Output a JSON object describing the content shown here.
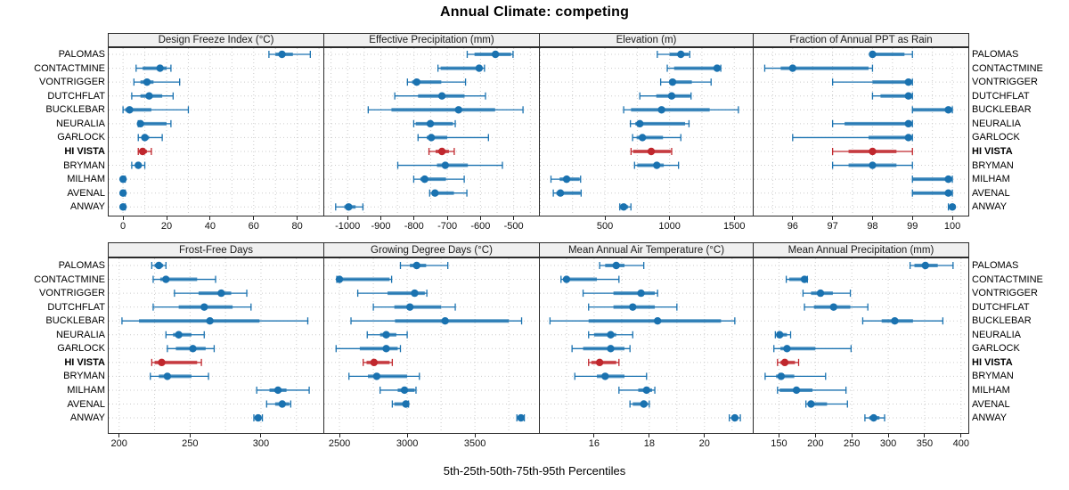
{
  "title": "Annual Climate: competing",
  "caption": "5th-25th-50th-75th-95th Percentiles",
  "highlight_site": "HI VISTA",
  "colors": {
    "series": "#1a72b0",
    "highlight": "#c0272d",
    "grid": "#cccccc",
    "header_bg": "#f0f0f0",
    "border": "#2b2b2b",
    "background": "#ffffff"
  },
  "chart_data": {
    "type": "trellis-dotplot-percentiles",
    "percentiles": [
      5,
      25,
      50,
      75,
      95
    ],
    "legend_position": "none",
    "grid": "dotted",
    "sites": [
      "PALOMAS",
      "CONTACTMINE",
      "VONTRIGGER",
      "DUTCHFLAT",
      "BUCKLEBAR",
      "NEURALIA",
      "GARLOCK",
      "HI VISTA",
      "BRYMAN",
      "MILHAM",
      "AVENAL",
      "ANWAY"
    ],
    "panels": [
      {
        "title": "Design Freeze Index (°C)",
        "row": 0,
        "col": 0,
        "xlim": [
          -7,
          92
        ],
        "ticks": [
          0,
          20,
          40,
          60,
          80
        ],
        "minor": 10,
        "values": [
          [
            67,
            70,
            73,
            78,
            86
          ],
          [
            6,
            9,
            17,
            20,
            22
          ],
          [
            5,
            8,
            11,
            14,
            26
          ],
          [
            4,
            8,
            12,
            18,
            23
          ],
          [
            0,
            1,
            3,
            13,
            30
          ],
          [
            7,
            7.5,
            8,
            20,
            22
          ],
          [
            7,
            9,
            10,
            12,
            18
          ],
          [
            7,
            8,
            9,
            11,
            13
          ],
          [
            4,
            6,
            7,
            8,
            10
          ],
          [
            0,
            0,
            0,
            0.5,
            1
          ],
          [
            0,
            0,
            0,
            0.5,
            1
          ],
          [
            0,
            0,
            0,
            0.5,
            1
          ]
        ]
      },
      {
        "title": "Effective Precipitation (mm)",
        "row": 0,
        "col": 1,
        "xlim": [
          -1073,
          -424
        ],
        "ticks": [
          -1000,
          -900,
          -800,
          -700,
          -600,
          -500
        ],
        "minor": 50,
        "values": [
          [
            -640,
            -618,
            -555,
            -508,
            -502
          ],
          [
            -728,
            -720,
            -604,
            -600,
            -588
          ],
          [
            -820,
            -806,
            -792,
            -718,
            -645
          ],
          [
            -858,
            -788,
            -716,
            -648,
            -585
          ],
          [
            -938,
            -868,
            -666,
            -556,
            -472
          ],
          [
            -801,
            -795,
            -751,
            -683,
            -676
          ],
          [
            -788,
            -762,
            -748,
            -700,
            -576
          ],
          [
            -755,
            -735,
            -716,
            -695,
            -679
          ],
          [
            -849,
            -731,
            -706,
            -638,
            -534
          ],
          [
            -801,
            -781,
            -768,
            -704,
            -649
          ],
          [
            -753,
            -745,
            -737,
            -680,
            -641
          ],
          [
            -1036,
            -1010,
            -997,
            -976,
            -954
          ]
        ]
      },
      {
        "title": "Elevation (m)",
        "row": 0,
        "col": 2,
        "xlim": [
          -10,
          1643
        ],
        "ticks": [
          500,
          1000,
          1500
        ],
        "minor": 250,
        "values": [
          [
            905,
            1000,
            1087,
            1148,
            1156
          ],
          [
            982,
            1035,
            1367,
            1390,
            1396
          ],
          [
            931,
            1000,
            1023,
            1172,
            1321
          ],
          [
            770,
            897,
            1016,
            1160,
            1166
          ],
          [
            645,
            702,
            938,
            1310,
            1532
          ],
          [
            697,
            735,
            770,
            1120,
            1150
          ],
          [
            714,
            745,
            790,
            949,
            1087
          ],
          [
            702,
            718,
            858,
            1008,
            1016
          ],
          [
            729,
            750,
            901,
            955,
            1069
          ],
          [
            83,
            150,
            204,
            305,
            312
          ],
          [
            101,
            125,
            156,
            310,
            316
          ],
          [
            615,
            630,
            645,
            680,
            701
          ]
        ]
      },
      {
        "title": "Fraction of Annual PPT as Rain",
        "row": 0,
        "col": 3,
        "xlim": [
          95,
          100.4
        ],
        "ticks": [
          96,
          97,
          98,
          99,
          100
        ],
        "minor": 0.5,
        "values": [
          [
            98,
            98,
            98,
            98.8,
            99
          ],
          [
            95.3,
            95.7,
            96,
            97.9,
            98
          ],
          [
            97,
            98,
            98.9,
            99,
            99
          ],
          [
            98,
            98.2,
            98.9,
            99,
            99
          ],
          [
            99,
            99,
            99.9,
            100,
            100
          ],
          [
            97,
            97.3,
            98.9,
            99,
            99
          ],
          [
            96,
            97.9,
            98.9,
            99,
            99
          ],
          [
            97,
            97.4,
            98,
            98.6,
            99
          ],
          [
            97,
            97.4,
            98,
            98.6,
            99
          ],
          [
            99,
            99,
            99.9,
            100,
            100
          ],
          [
            99,
            99,
            99.9,
            100,
            100
          ],
          [
            99.9,
            99.95,
            100,
            100,
            100
          ]
        ]
      },
      {
        "title": "Frost-Free Days",
        "row": 1,
        "col": 0,
        "xlim": [
          192,
          344
        ],
        "ticks": [
          200,
          250,
          300
        ],
        "minor": 25,
        "values": [
          [
            223,
            225,
            228,
            231,
            233
          ],
          [
            224,
            229,
            233,
            255,
            268
          ],
          [
            239,
            256,
            272,
            279,
            290
          ],
          [
            224,
            242,
            260,
            280,
            293
          ],
          [
            202,
            214,
            264,
            299,
            333
          ],
          [
            233,
            238,
            242,
            251,
            260
          ],
          [
            234,
            240,
            252,
            261,
            267
          ],
          [
            223,
            225,
            230,
            255,
            258
          ],
          [
            222,
            228,
            234,
            251,
            263
          ],
          [
            297,
            306,
            312,
            318,
            334
          ],
          [
            304,
            310,
            315,
            320,
            321
          ],
          [
            295,
            297,
            298,
            300,
            301
          ]
        ]
      },
      {
        "title": "Growing Degree Days (°C)",
        "row": 1,
        "col": 1,
        "xlim": [
          2381,
          3973
        ],
        "ticks": [
          2500,
          3000,
          3500
        ],
        "minor": 250,
        "values": [
          [
            2950,
            3020,
            3070,
            3140,
            3300
          ],
          [
            2480,
            2490,
            2500,
            2870,
            2885
          ],
          [
            2635,
            2855,
            3055,
            3130,
            3145
          ],
          [
            2750,
            2905,
            3020,
            3250,
            3355
          ],
          [
            2585,
            2910,
            3280,
            3750,
            3845
          ],
          [
            2705,
            2800,
            2845,
            2920,
            3000
          ],
          [
            2475,
            2650,
            2845,
            2930,
            2950
          ],
          [
            2675,
            2700,
            2755,
            2870,
            2890
          ],
          [
            2570,
            2710,
            2775,
            3000,
            3090
          ],
          [
            2800,
            2930,
            2980,
            3055,
            3065
          ],
          [
            2890,
            2905,
            2990,
            3005,
            3010
          ],
          [
            3810,
            3825,
            3840,
            3855,
            3865
          ]
        ]
      },
      {
        "title": "Mean Annual Air Temperature (°C)",
        "row": 1,
        "col": 2,
        "xlim": [
          14,
          21.75
        ],
        "ticks": [
          16,
          18,
          20
        ],
        "minor": 1,
        "values": [
          [
            16.2,
            16.4,
            16.8,
            17.1,
            17.8
          ],
          [
            14.8,
            14.9,
            15,
            16.1,
            16.9
          ],
          [
            15.6,
            16.7,
            17.7,
            18.2,
            18.3
          ],
          [
            15.8,
            16.7,
            17.4,
            18.2,
            19
          ],
          [
            14.4,
            15.8,
            18.3,
            20.6,
            21.1
          ],
          [
            15.8,
            16,
            16.6,
            16.8,
            17.4
          ],
          [
            15.2,
            15.6,
            16.6,
            17.1,
            17.3
          ],
          [
            15.8,
            15.9,
            16.2,
            16.8,
            16.9
          ],
          [
            15.3,
            16.1,
            16.4,
            17.1,
            17.9
          ],
          [
            16.9,
            17.6,
            17.9,
            18.1,
            18.2
          ],
          [
            17.3,
            17.4,
            17.8,
            17.95,
            18
          ],
          [
            20.9,
            21,
            21.1,
            21.2,
            21.3
          ]
        ]
      },
      {
        "title": "Mean Annual Precipitation (mm)",
        "row": 1,
        "col": 3,
        "xlim": [
          114,
          410
        ],
        "ticks": [
          150,
          200,
          250,
          300,
          350,
          400
        ],
        "minor": 50,
        "values": [
          [
            330,
            336,
            351,
            368,
            389
          ],
          [
            160,
            164,
            185,
            187,
            189
          ],
          [
            183,
            194,
            207,
            224,
            248
          ],
          [
            185,
            198,
            225,
            248,
            272
          ],
          [
            265,
            291,
            309,
            334,
            375
          ],
          [
            145,
            148,
            151,
            161,
            166
          ],
          [
            143,
            152,
            161,
            200,
            249
          ],
          [
            148,
            152,
            158,
            172,
            177
          ],
          [
            131,
            146,
            153,
            171,
            214
          ],
          [
            148,
            151,
            174,
            196,
            242
          ],
          [
            187,
            190,
            194,
            216,
            244
          ],
          [
            268,
            274,
            280,
            288,
            295
          ]
        ]
      }
    ]
  }
}
